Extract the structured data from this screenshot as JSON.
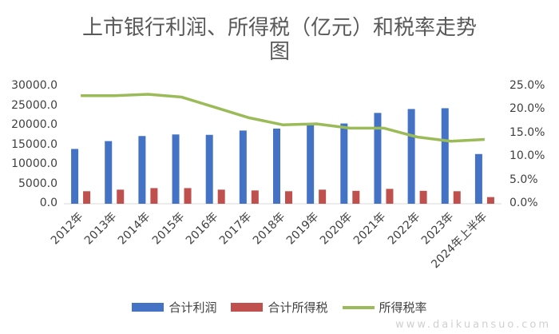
{
  "chart_data": {
    "type": "bar",
    "title_lines": [
      "上市银行利润、所得税（亿元）和税率走势",
      "图"
    ],
    "categories": [
      "2012年",
      "2013年",
      "2014年",
      "2015年",
      "2016年",
      "2017年",
      "2018年",
      "2019年",
      "2020年",
      "2021年",
      "2022年",
      "2023年",
      "2024年上半年"
    ],
    "series": [
      {
        "name": "合计利润",
        "kind": "bar",
        "axis": "left",
        "color": "#4472C4",
        "values": [
          14000,
          16000,
          17300,
          17700,
          17600,
          18700,
          19200,
          20300,
          20500,
          23200,
          24200,
          24400,
          12700
        ]
      },
      {
        "name": "合计所得税",
        "kind": "bar",
        "axis": "left",
        "color": "#C0504D",
        "values": [
          3200,
          3600,
          4000,
          4000,
          3600,
          3400,
          3200,
          3600,
          3300,
          3800,
          3300,
          3200,
          1700
        ]
      },
      {
        "name": "所得税率",
        "kind": "line",
        "axis": "right",
        "color": "#9BBB59",
        "values": [
          0.23,
          0.23,
          0.233,
          0.227,
          0.205,
          0.183,
          0.168,
          0.17,
          0.161,
          0.161,
          0.142,
          0.133,
          0.137
        ]
      }
    ],
    "y_left": {
      "min": 0,
      "max": 30000,
      "ticks": [
        "0.0",
        "5000.0",
        "10000.0",
        "15000.0",
        "20000.0",
        "25000.0",
        "30000.0"
      ]
    },
    "y_right": {
      "min": 0,
      "max": 0.25,
      "ticks": [
        "0.0%",
        "5.0%",
        "10.0%",
        "15.0%",
        "20.0%",
        "25.0%"
      ]
    },
    "grid": false,
    "legend_position": "bottom"
  },
  "watermark": "www.daikuansuo.com"
}
